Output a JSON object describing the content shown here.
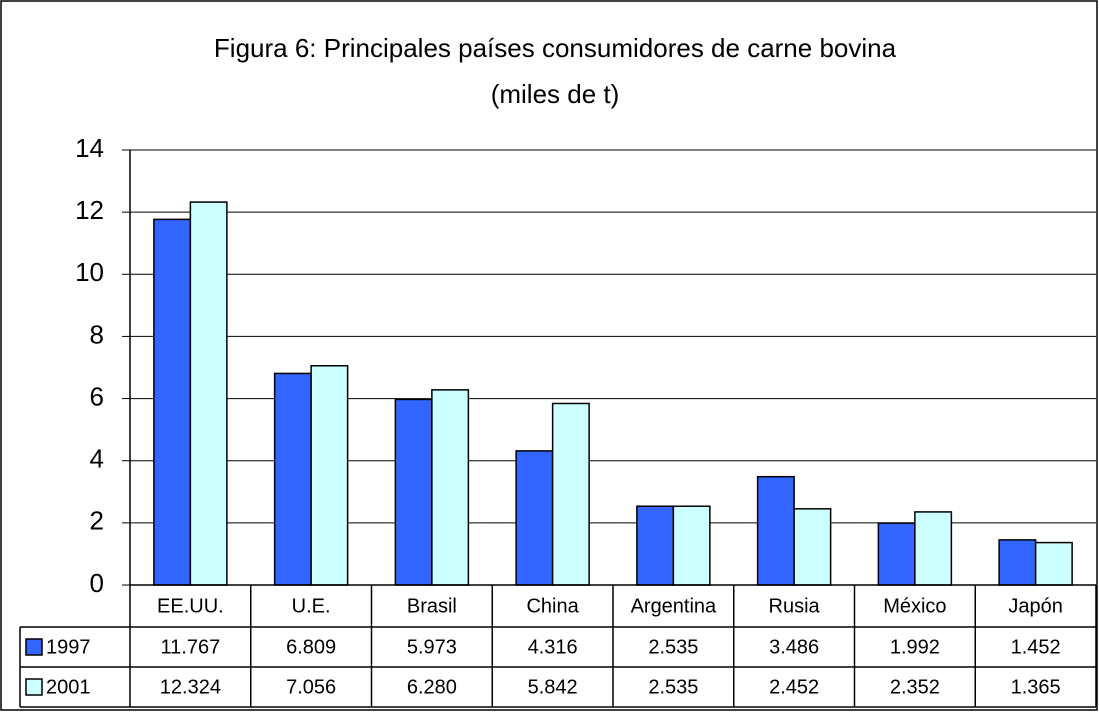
{
  "chart_data": {
    "type": "bar",
    "title": "Figura 6: Principales países consumidores de carne bovina",
    "subtitle": "(miles de t)",
    "categories": [
      "EE.UU.",
      "U.E.",
      "Brasil",
      "China",
      "Argentina",
      "Rusia",
      "México",
      "Japón"
    ],
    "series": [
      {
        "name": "1997",
        "color": "#3366ff",
        "values": [
          11.767,
          6.809,
          5.973,
          4.316,
          2.535,
          3.486,
          1.992,
          1.452
        ],
        "value_labels": [
          "11.767",
          "6.809",
          "5.973",
          "4.316",
          "2.535",
          "3.486",
          "1.992",
          "1.452"
        ]
      },
      {
        "name": "2001",
        "color": "#ccffff",
        "values": [
          12.324,
          7.056,
          6.28,
          5.842,
          2.535,
          2.452,
          2.352,
          1.365
        ],
        "value_labels": [
          "12.324",
          "7.056",
          "6.280",
          "5.842",
          "2.535",
          "2.452",
          "2.352",
          "1.365"
        ]
      }
    ],
    "ylim": [
      0,
      14
    ],
    "yticks": [
      0,
      2,
      4,
      6,
      8,
      10,
      12,
      14
    ],
    "grid": true
  }
}
